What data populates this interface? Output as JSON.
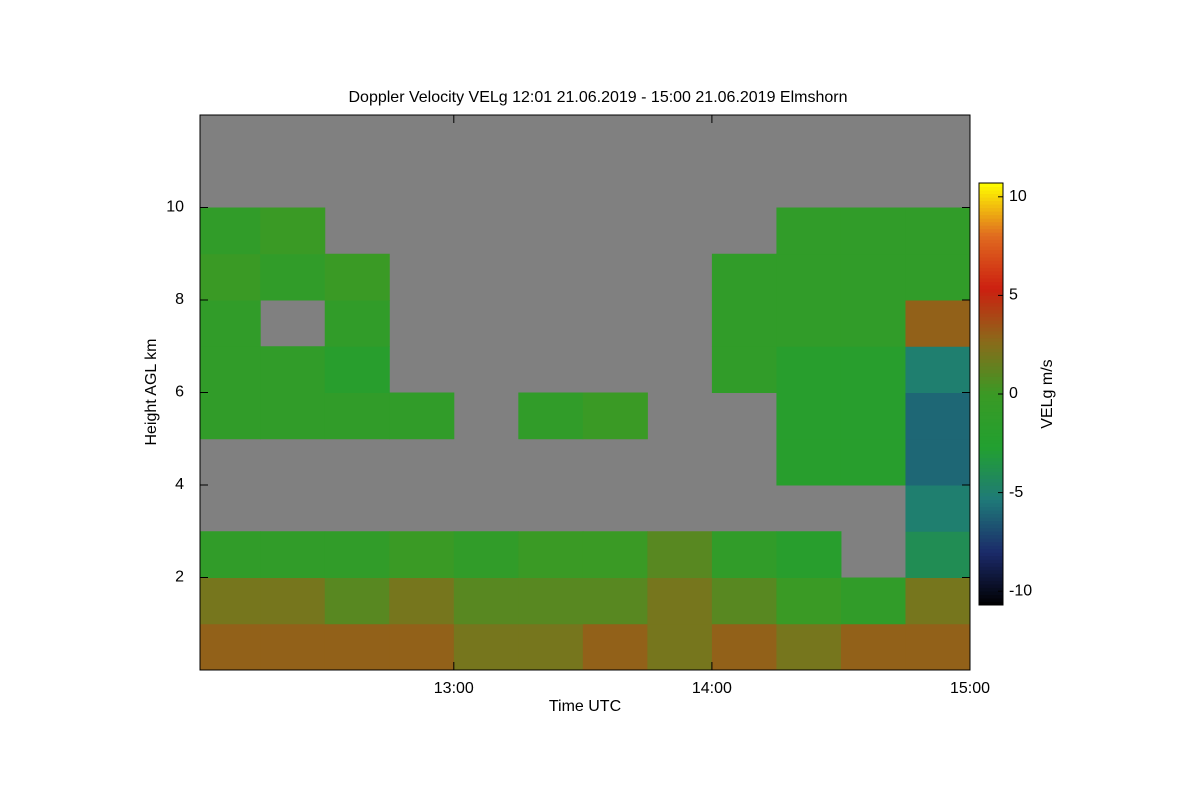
{
  "chart_data": {
    "type": "heatmap",
    "title": "Doppler Velocity VELg   12:01 21.06.2019 - 15:00 21.06.2019 Elmshorn",
    "x_label": "Time UTC",
    "y_label": "Height AGL km",
    "colorbar_label": "VELg m/s",
    "xlim": [
      721,
      900
    ],
    "xticks": [
      {
        "value": 780,
        "label": "13:00"
      },
      {
        "value": 840,
        "label": "14:00"
      },
      {
        "value": 900,
        "label": "15:00"
      }
    ],
    "ylim": [
      0,
      12
    ],
    "yticks": [
      2,
      4,
      6,
      8,
      10
    ],
    "xbins": [
      721,
      735,
      750,
      765,
      780,
      795,
      810,
      825,
      840,
      855,
      870,
      885,
      900
    ],
    "ybins": [
      0,
      1,
      2,
      3,
      4,
      5,
      6,
      7,
      8,
      9,
      10,
      11,
      12
    ],
    "values": [
      [
        3,
        3,
        3,
        3,
        2,
        2,
        3,
        2,
        3,
        2,
        3,
        3
      ],
      [
        2,
        2,
        1,
        2,
        1,
        1,
        1,
        2,
        1,
        0,
        -1,
        2
      ],
      [
        -1,
        -1,
        -1,
        0,
        -1,
        0,
        0,
        1,
        -1,
        -2,
        null,
        -4
      ],
      [
        null,
        null,
        null,
        null,
        null,
        null,
        null,
        null,
        null,
        null,
        null,
        -5
      ],
      [
        null,
        null,
        null,
        null,
        null,
        null,
        null,
        null,
        null,
        -2,
        -2,
        -6
      ],
      [
        -1,
        -1,
        -1,
        -1,
        null,
        -1,
        0,
        null,
        null,
        -2,
        -2,
        -6
      ],
      [
        -1,
        -1,
        -2,
        null,
        null,
        null,
        null,
        null,
        -1,
        -2,
        -2,
        -5
      ],
      [
        -1,
        null,
        -1,
        null,
        null,
        null,
        null,
        null,
        -1,
        -1,
        -1,
        3
      ],
      [
        0,
        -1,
        0,
        null,
        null,
        null,
        null,
        null,
        -1,
        -1,
        -1,
        -1
      ],
      [
        -1,
        0,
        null,
        null,
        null,
        null,
        null,
        null,
        null,
        -1,
        -1,
        -1
      ],
      [
        null,
        null,
        null,
        null,
        null,
        null,
        null,
        null,
        null,
        null,
        null,
        null
      ],
      [
        null,
        null,
        null,
        null,
        null,
        null,
        null,
        null,
        null,
        null,
        null,
        null
      ]
    ],
    "clim": [
      -10.7,
      10.7
    ],
    "cticks": [
      -10,
      -5,
      0,
      5,
      10
    ],
    "colormap": [
      "#000000",
      "#1b2a6a",
      "#1f7a78",
      "#22a030",
      "#3a9a25",
      "#8a6a1a",
      "#cc2010",
      "#e06a20",
      "#ffff00"
    ],
    "missing_color": "#808080"
  }
}
